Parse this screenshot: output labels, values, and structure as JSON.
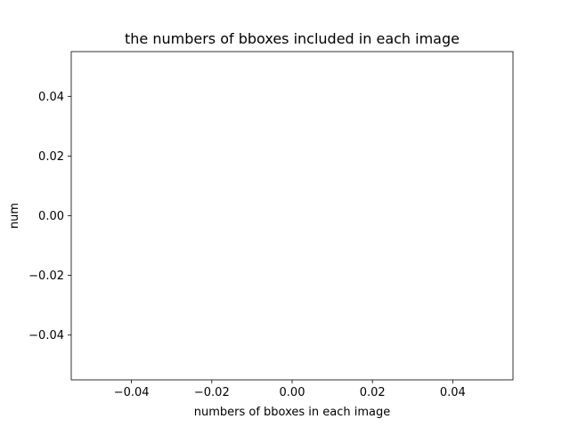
{
  "chart_data": {
    "type": "bar",
    "title": "the numbers of bboxes included in each image",
    "xlabel": "numbers of bboxes in each image",
    "ylabel": "num",
    "xlim": [
      -0.055,
      0.055
    ],
    "ylim": [
      -0.055,
      0.055
    ],
    "x_ticks": [
      -0.04,
      -0.02,
      0.0,
      0.02,
      0.04
    ],
    "x_tick_labels": [
      "−0.04",
      "−0.02",
      "0.00",
      "0.02",
      "0.04"
    ],
    "y_ticks": [
      -0.04,
      -0.02,
      0.0,
      0.02,
      0.04
    ],
    "y_tick_labels": [
      "−0.04",
      "−0.02",
      "0.00",
      "0.02",
      "0.04"
    ],
    "series": [],
    "grid": false,
    "legend": "none"
  }
}
